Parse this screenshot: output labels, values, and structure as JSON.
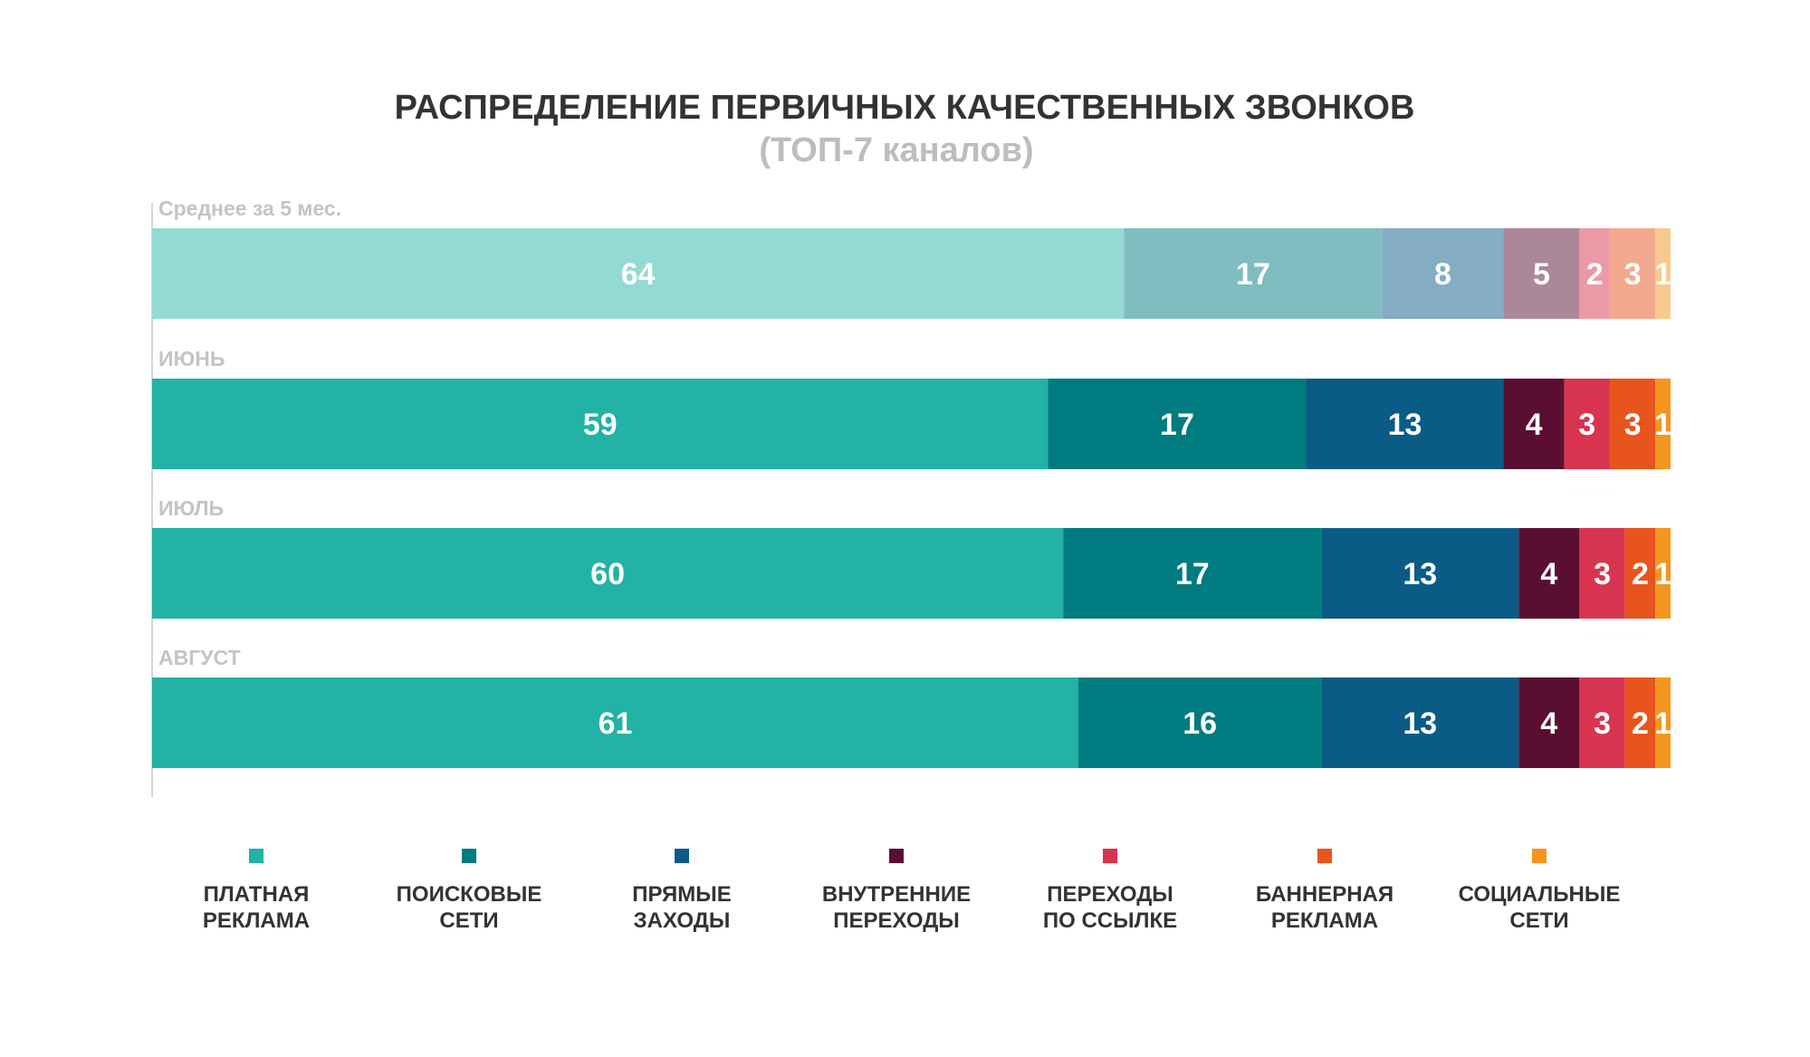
{
  "chart_data": {
    "type": "bar",
    "orientation": "horizontal",
    "stacked": true,
    "title": "РАСПРЕДЕЛЕНИЕ ПЕРВИЧНЫХ КАЧЕСТВЕННЫХ ЗВОНКОВ",
    "subtitle": "(ТОП-7 каналов)",
    "categories": [
      "Среднее за 5 мес.",
      "ИЮНЬ",
      "ИЮЛЬ",
      "АВГУСТ"
    ],
    "series": [
      {
        "name": "ПЛАТНАЯ РЕКЛАМА",
        "legend_lines": [
          "ПЛАТНАЯ",
          "РЕКЛАМА"
        ],
        "color": "#22b2a6",
        "faded_color": "#92dad3",
        "values": [
          64,
          59,
          60,
          61
        ]
      },
      {
        "name": "ПОИСКОВЫЕ СЕТИ",
        "legend_lines": [
          "ПОИСКОВЫЕ",
          "СЕТИ"
        ],
        "color": "#007b7f",
        "faded_color": "#80bdc0",
        "values": [
          17,
          17,
          17,
          16
        ]
      },
      {
        "name": "ПРЯМЫЕ ЗАХОДЫ",
        "legend_lines": [
          "ПРЯМЫЕ",
          "ЗАХОДЫ"
        ],
        "color": "#0a5c86",
        "faded_color": "#84acc2",
        "values": [
          8,
          13,
          13,
          13
        ]
      },
      {
        "name": "ВНУТРЕННИЕ ПЕРЕХОДЫ",
        "legend_lines": [
          "ВНУТРЕННИЕ",
          "ПЕРЕХОДЫ"
        ],
        "color": "#5a0f32",
        "faded_color": "#ac8798",
        "values": [
          5,
          4,
          4,
          4
        ]
      },
      {
        "name": "ПЕРЕХОДЫ ПО ССЫЛКЕ",
        "legend_lines": [
          "ПЕРЕХОДЫ",
          "ПО ССЫЛКЕ"
        ],
        "color": "#d9344f",
        "faded_color": "#ec99a7",
        "values": [
          2,
          3,
          3,
          3
        ]
      },
      {
        "name": "БАННЕРНАЯ РЕКЛАМА",
        "legend_lines": [
          "БАННЕРНАЯ",
          "РЕКЛАМА"
        ],
        "color": "#e8541e",
        "faded_color": "#f3a98e",
        "values": [
          3,
          3,
          2,
          2
        ]
      },
      {
        "name": "СОЦИАЛЬНЫЕ СЕТИ",
        "legend_lines": [
          "СОЦИАЛЬНЫЕ",
          "СЕТИ"
        ],
        "color": "#f4961e",
        "faded_color": "#f9ca8e",
        "values": [
          1,
          1,
          1,
          1
        ]
      }
    ],
    "faded_rows": [
      0
    ],
    "data_labels": true,
    "legend_position": "bottom",
    "grid": false
  }
}
